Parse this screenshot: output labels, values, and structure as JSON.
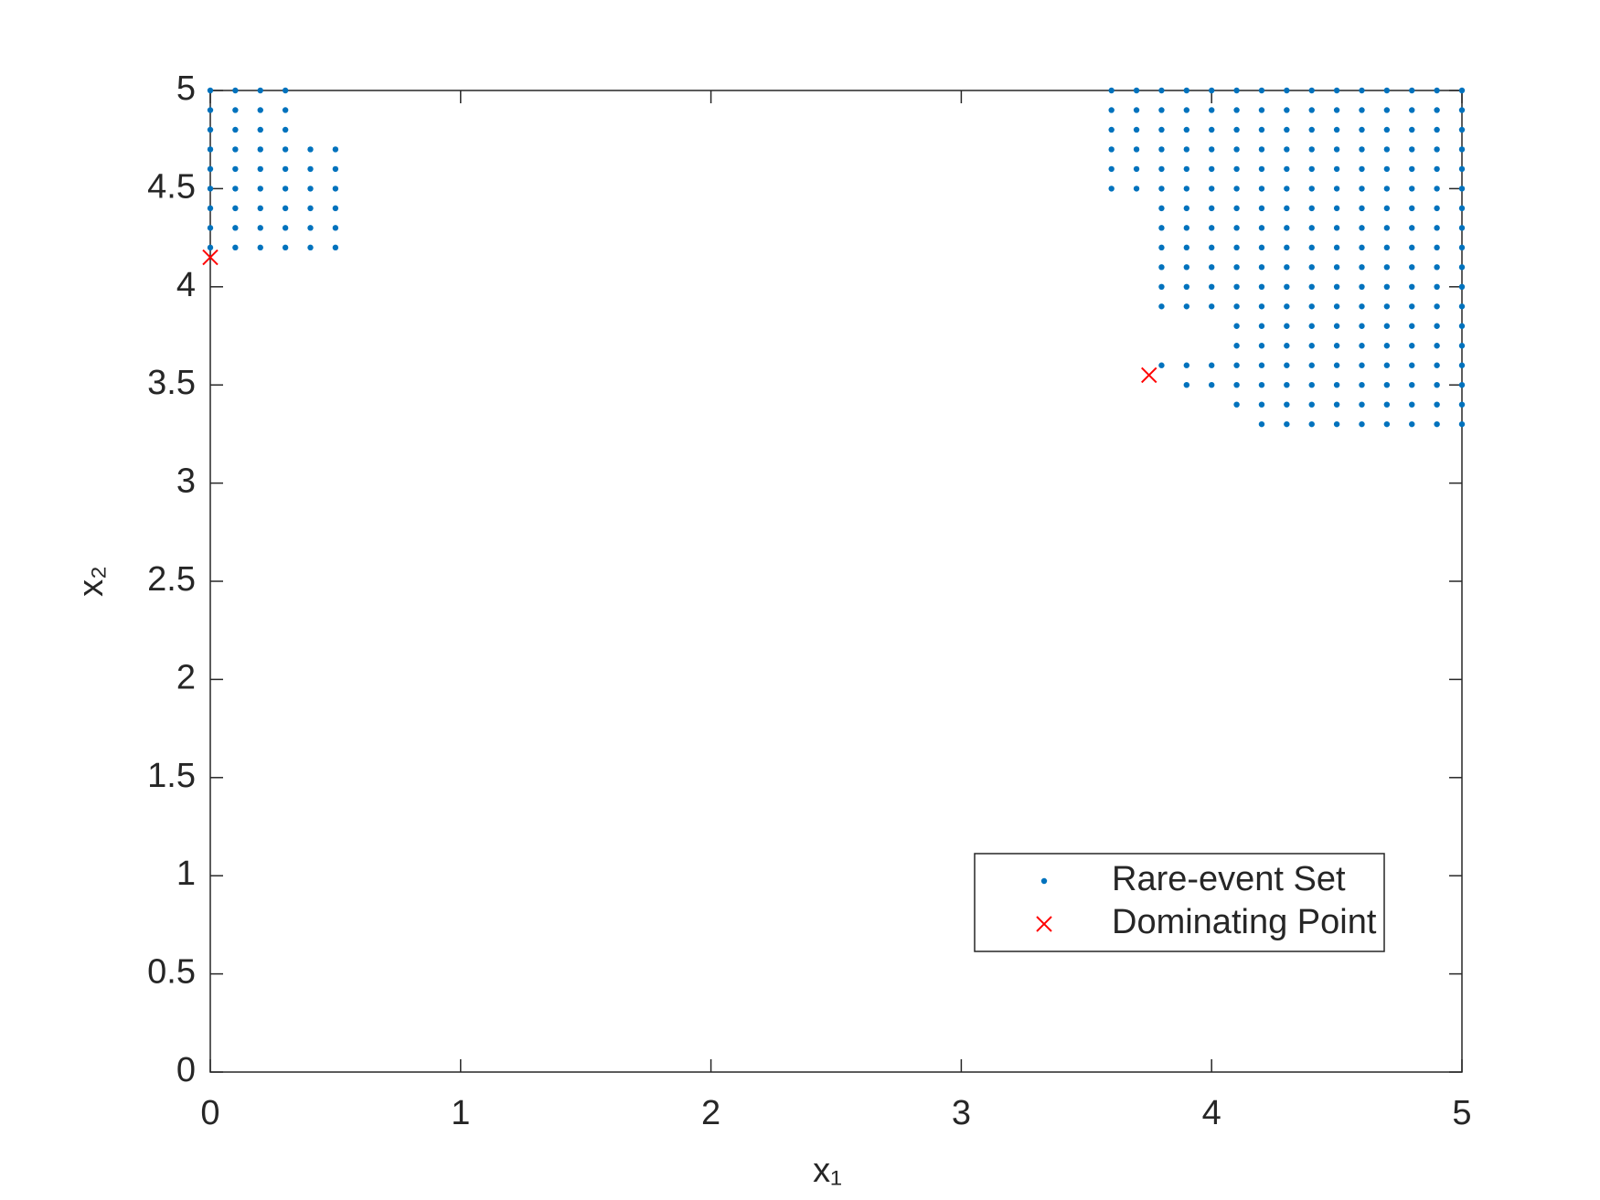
{
  "chart_data": {
    "type": "scatter",
    "xlabel": "x₁",
    "ylabel": "x₂",
    "xlim": [
      0,
      5
    ],
    "ylim": [
      0,
      5
    ],
    "xticks": [
      0,
      1,
      2,
      3,
      4,
      5
    ],
    "yticks": [
      0,
      0.5,
      1,
      1.5,
      2,
      2.5,
      3,
      3.5,
      4,
      4.5,
      5
    ],
    "legend": "lower right",
    "series": [
      {
        "name": "Rare-event Set",
        "color": "#0072bd",
        "marker": "dot",
        "x": [
          0,
          0.1,
          0.2,
          0.3,
          0,
          0.1,
          0.2,
          0.3,
          0,
          0.1,
          0.2,
          0.3,
          0,
          0.1,
          0.2,
          0.3,
          0.4,
          0.5,
          0,
          0.1,
          0.2,
          0.3,
          0.4,
          0.5,
          0,
          0.1,
          0.2,
          0.3,
          0.4,
          0.5,
          0,
          0.1,
          0.2,
          0.3,
          0.4,
          0.5,
          0,
          0.1,
          0.2,
          0.3,
          0.4,
          0.5,
          0,
          0.1,
          0.2,
          0.3,
          0.4,
          0.5,
          3.6,
          3.7,
          3.8,
          3.9,
          4,
          4.1,
          4.2,
          4.3,
          4.4,
          4.5,
          4.6,
          4.7,
          4.8,
          4.9,
          5,
          3.6,
          3.7,
          3.8,
          3.9,
          4,
          4.1,
          4.2,
          4.3,
          4.4,
          4.5,
          4.6,
          4.7,
          4.8,
          4.9,
          5,
          3.6,
          3.7,
          3.8,
          3.9,
          4,
          4.1,
          4.2,
          4.3,
          4.4,
          4.5,
          4.6,
          4.7,
          4.8,
          4.9,
          5,
          3.6,
          3.7,
          3.8,
          3.9,
          4,
          4.1,
          4.2,
          4.3,
          4.4,
          4.5,
          4.6,
          4.7,
          4.8,
          4.9,
          5,
          3.6,
          3.7,
          3.8,
          3.9,
          4,
          4.1,
          4.2,
          4.3,
          4.4,
          4.5,
          4.6,
          4.7,
          4.8,
          4.9,
          5,
          3.6,
          3.7,
          3.8,
          3.9,
          4,
          4.1,
          4.2,
          4.3,
          4.4,
          4.5,
          4.6,
          4.7,
          4.8,
          4.9,
          5,
          3.8,
          3.9,
          4,
          4.1,
          4.2,
          4.3,
          4.4,
          4.5,
          4.6,
          4.7,
          4.8,
          4.9,
          5,
          3.8,
          3.9,
          4,
          4.1,
          4.2,
          4.3,
          4.4,
          4.5,
          4.6,
          4.7,
          4.8,
          4.9,
          5,
          3.8,
          3.9,
          4,
          4.1,
          4.2,
          4.3,
          4.4,
          4.5,
          4.6,
          4.7,
          4.8,
          4.9,
          5,
          3.8,
          3.9,
          4,
          4.1,
          4.2,
          4.3,
          4.4,
          4.5,
          4.6,
          4.7,
          4.8,
          4.9,
          5,
          3.8,
          3.9,
          4,
          4.1,
          4.2,
          4.3,
          4.4,
          4.5,
          4.6,
          4.7,
          4.8,
          4.9,
          5,
          3.8,
          3.9,
          4,
          4.1,
          4.2,
          4.3,
          4.4,
          4.5,
          4.6,
          4.7,
          4.8,
          4.9,
          5,
          4.1,
          4.2,
          4.3,
          4.4,
          4.5,
          4.6,
          4.7,
          4.8,
          4.9,
          5,
          4.1,
          4.2,
          4.3,
          4.4,
          4.5,
          4.6,
          4.7,
          4.8,
          4.9,
          5,
          3.8,
          3.9,
          4,
          4.1,
          4.2,
          4.3,
          4.4,
          4.5,
          4.6,
          4.7,
          4.8,
          4.9,
          5,
          3.9,
          4,
          4.1,
          4.2,
          4.3,
          4.4,
          4.5,
          4.6,
          4.7,
          4.8,
          4.9,
          5,
          4.1,
          4.2,
          4.3,
          4.4,
          4.5,
          4.6,
          4.7,
          4.8,
          4.9,
          5,
          4.2,
          4.3,
          4.4,
          4.5,
          4.6,
          4.7,
          4.8,
          4.9,
          5
        ],
        "y": [
          5,
          5,
          5,
          5,
          4.9,
          4.9,
          4.9,
          4.9,
          4.8,
          4.8,
          4.8,
          4.8,
          4.7,
          4.7,
          4.7,
          4.7,
          4.7,
          4.7,
          4.6,
          4.6,
          4.6,
          4.6,
          4.6,
          4.6,
          4.5,
          4.5,
          4.5,
          4.5,
          4.5,
          4.5,
          4.4,
          4.4,
          4.4,
          4.4,
          4.4,
          4.4,
          4.3,
          4.3,
          4.3,
          4.3,
          4.3,
          4.3,
          4.2,
          4.2,
          4.2,
          4.2,
          4.2,
          4.2,
          5,
          5,
          5,
          5,
          5,
          5,
          5,
          5,
          5,
          5,
          5,
          5,
          5,
          5,
          5,
          4.9,
          4.9,
          4.9,
          4.9,
          4.9,
          4.9,
          4.9,
          4.9,
          4.9,
          4.9,
          4.9,
          4.9,
          4.9,
          4.9,
          4.9,
          4.8,
          4.8,
          4.8,
          4.8,
          4.8,
          4.8,
          4.8,
          4.8,
          4.8,
          4.8,
          4.8,
          4.8,
          4.8,
          4.8,
          4.8,
          4.7,
          4.7,
          4.7,
          4.7,
          4.7,
          4.7,
          4.7,
          4.7,
          4.7,
          4.7,
          4.7,
          4.7,
          4.7,
          4.7,
          4.7,
          4.6,
          4.6,
          4.6,
          4.6,
          4.6,
          4.6,
          4.6,
          4.6,
          4.6,
          4.6,
          4.6,
          4.6,
          4.6,
          4.6,
          4.6,
          4.5,
          4.5,
          4.5,
          4.5,
          4.5,
          4.5,
          4.5,
          4.5,
          4.5,
          4.5,
          4.5,
          4.5,
          4.5,
          4.5,
          4.5,
          4.4,
          4.4,
          4.4,
          4.4,
          4.4,
          4.4,
          4.4,
          4.4,
          4.4,
          4.4,
          4.4,
          4.4,
          4.4,
          4.3,
          4.3,
          4.3,
          4.3,
          4.3,
          4.3,
          4.3,
          4.3,
          4.3,
          4.3,
          4.3,
          4.3,
          4.3,
          4.2,
          4.2,
          4.2,
          4.2,
          4.2,
          4.2,
          4.2,
          4.2,
          4.2,
          4.2,
          4.2,
          4.2,
          4.2,
          4.1,
          4.1,
          4.1,
          4.1,
          4.1,
          4.1,
          4.1,
          4.1,
          4.1,
          4.1,
          4.1,
          4.1,
          4.1,
          4,
          4,
          4,
          4,
          4,
          4,
          4,
          4,
          4,
          4,
          4,
          4,
          4,
          3.9,
          3.9,
          3.9,
          3.9,
          3.9,
          3.9,
          3.9,
          3.9,
          3.9,
          3.9,
          3.9,
          3.9,
          3.9,
          3.8,
          3.8,
          3.8,
          3.8,
          3.8,
          3.8,
          3.8,
          3.8,
          3.8,
          3.8,
          3.7,
          3.7,
          3.7,
          3.7,
          3.7,
          3.7,
          3.7,
          3.7,
          3.7,
          3.7,
          3.6,
          3.6,
          3.6,
          3.6,
          3.6,
          3.6,
          3.6,
          3.6,
          3.6,
          3.6,
          3.6,
          3.6,
          3.6,
          3.5,
          3.5,
          3.5,
          3.5,
          3.5,
          3.5,
          3.5,
          3.5,
          3.5,
          3.5,
          3.5,
          3.5,
          3.4,
          3.4,
          3.4,
          3.4,
          3.4,
          3.4,
          3.4,
          3.4,
          3.4,
          3.4,
          3.3,
          3.3,
          3.3,
          3.3,
          3.3,
          3.3,
          3.3,
          3.3,
          3.3
        ]
      },
      {
        "name": "Dominating Point",
        "color": "#ff0000",
        "marker": "x",
        "x": [
          0,
          3.75
        ],
        "y": [
          4.15,
          3.55
        ]
      }
    ]
  }
}
